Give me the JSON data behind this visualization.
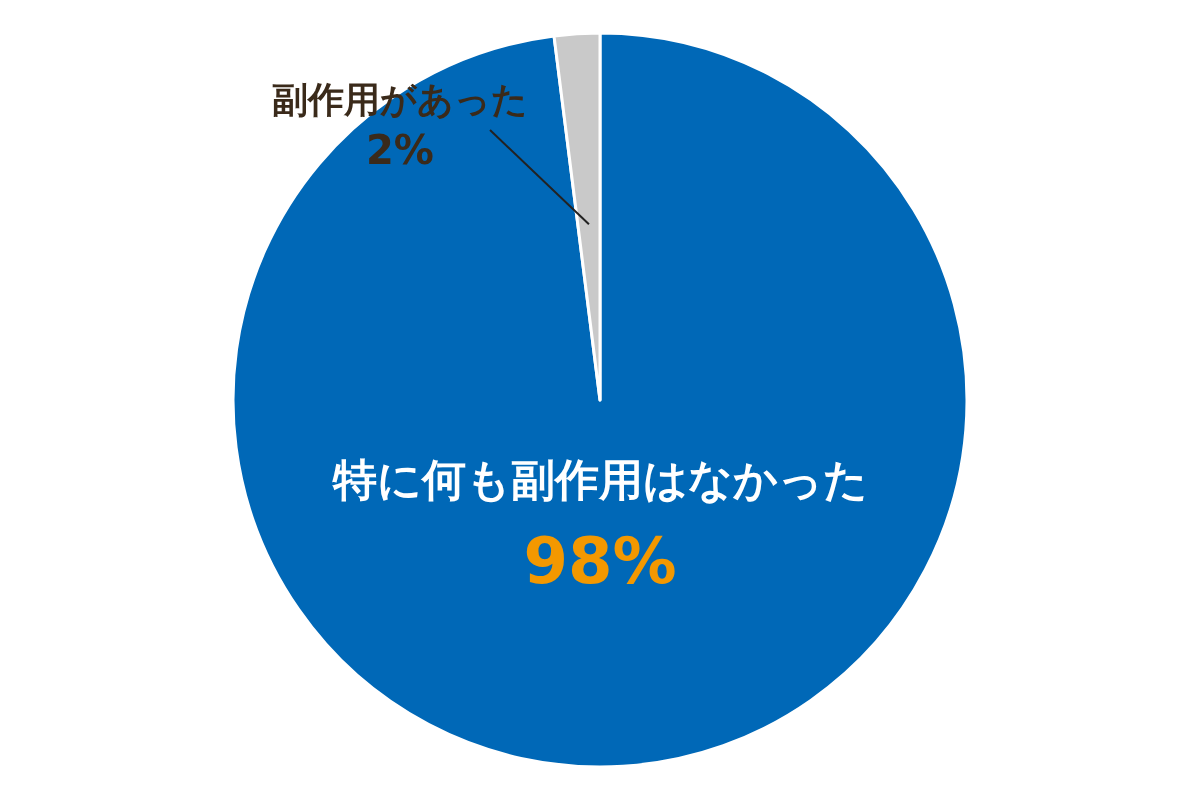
{
  "chart_data": {
    "type": "pie",
    "categories": [
      "特に何も副作用はなかった",
      "副作用があった"
    ],
    "values": [
      98,
      2
    ],
    "colors": [
      "#0068b7",
      "#c9c9c9"
    ],
    "value_labels": [
      "98%",
      "2%"
    ]
  }
}
